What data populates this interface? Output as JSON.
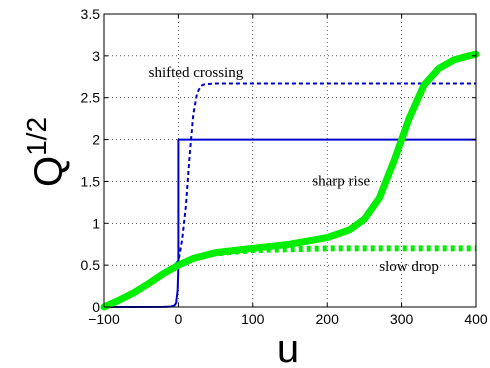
{
  "chart_data": {
    "type": "line",
    "xlabel": "u",
    "ylabel": "Q",
    "ylabel_exponent": "1/2",
    "xlim": [
      -100,
      400
    ],
    "ylim": [
      0,
      3.5
    ],
    "x_ticks": [
      -100,
      0,
      100,
      200,
      300,
      400
    ],
    "y_ticks": [
      0,
      0.5,
      1,
      1.5,
      2,
      2.5,
      3,
      3.5
    ],
    "x_tick_labels": [
      "−100",
      "0",
      "100",
      "200",
      "300",
      "400"
    ],
    "y_tick_labels": [
      "0",
      "0.5",
      "1",
      "1.5",
      "2",
      "2.5",
      "3",
      "3.5"
    ],
    "grid": true,
    "series": [
      {
        "style": "solid",
        "color": "#0000cc",
        "x": [
          -100,
          -20,
          -10,
          -5,
          -3,
          -1,
          0,
          0,
          50,
          100,
          200,
          300,
          400
        ],
        "y": [
          0,
          0.001,
          0.005,
          0.02,
          0.05,
          0.2,
          0.5,
          2,
          2,
          2,
          2,
          2,
          2
        ]
      },
      {
        "style": "dashed",
        "color": "#0000cc",
        "x": [
          -100,
          -80,
          -60,
          -40,
          -20,
          -10,
          0,
          5,
          10,
          15,
          20,
          25,
          30,
          35,
          50,
          100,
          200,
          300,
          400
        ],
        "y": [
          0,
          0.07,
          0.15,
          0.25,
          0.38,
          0.46,
          0.55,
          0.8,
          1.2,
          1.8,
          2.3,
          2.55,
          2.64,
          2.66,
          2.67,
          2.67,
          2.67,
          2.67,
          2.67
        ]
      },
      {
        "style": "thick-solid",
        "color": "#00ee00",
        "x": [
          -100,
          -80,
          -60,
          -40,
          -20,
          0,
          20,
          50,
          100,
          150,
          200,
          230,
          250,
          270,
          290,
          310,
          330,
          350,
          370,
          390,
          400
        ],
        "y": [
          0,
          0.08,
          0.17,
          0.28,
          0.4,
          0.5,
          0.58,
          0.65,
          0.7,
          0.75,
          0.83,
          0.92,
          1.05,
          1.3,
          1.75,
          2.25,
          2.65,
          2.85,
          2.95,
          3.0,
          3.02
        ]
      },
      {
        "style": "thick-dotted",
        "color": "#00ee00",
        "x": [
          -100,
          -80,
          -60,
          -40,
          -20,
          0,
          20,
          50,
          100,
          150,
          200,
          300,
          400
        ],
        "y": [
          0,
          0.08,
          0.17,
          0.28,
          0.4,
          0.5,
          0.58,
          0.64,
          0.68,
          0.69,
          0.7,
          0.7,
          0.7
        ]
      }
    ],
    "annotations": [
      {
        "text": "shifted crossing",
        "x": -40,
        "y": 2.75
      },
      {
        "text": "sharp rise",
        "x": 180,
        "y": 1.45
      },
      {
        "text": "slow drop",
        "x": 270,
        "y": 0.43
      }
    ]
  }
}
